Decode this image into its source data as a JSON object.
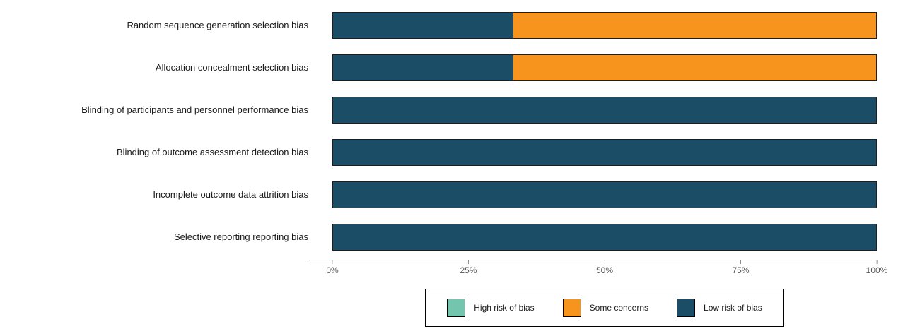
{
  "chart_data": {
    "type": "bar",
    "orientation": "horizontal",
    "stacked": true,
    "title": "",
    "xlabel": "",
    "ylabel": "",
    "xlim": [
      0,
      100
    ],
    "x_ticks": [
      "0%",
      "25%",
      "50%",
      "75%",
      "100%"
    ],
    "x_tick_values": [
      0,
      25,
      50,
      75,
      100
    ],
    "grid": false,
    "legend_position": "bottom",
    "categories": [
      "Random sequence generation  selection bias",
      "Allocation concealment selection bias",
      "Blinding of participants and personnel performance bias",
      "Blinding of outcome assessment detection bias",
      "Incomplete outcome data attrition bias",
      "Selective reporting reporting bias"
    ],
    "series": [
      {
        "name": "High risk of bias",
        "color": "#74c5ad",
        "values": [
          0,
          0,
          0,
          0,
          0,
          0
        ]
      },
      {
        "name": "Some concerns",
        "color": "#f7941e",
        "values": [
          66.7,
          66.7,
          0,
          0,
          0,
          0
        ]
      },
      {
        "name": "Low risk of bias",
        "color": "#1c4d66",
        "values": [
          33.3,
          33.3,
          100,
          100,
          100,
          100
        ]
      }
    ],
    "bar_draw_order_note": "Segments are drawn left-to-right in reverse legend order: Low risk of bias (navy) first, then Some concerns (orange), then High risk of bias (teal)."
  }
}
